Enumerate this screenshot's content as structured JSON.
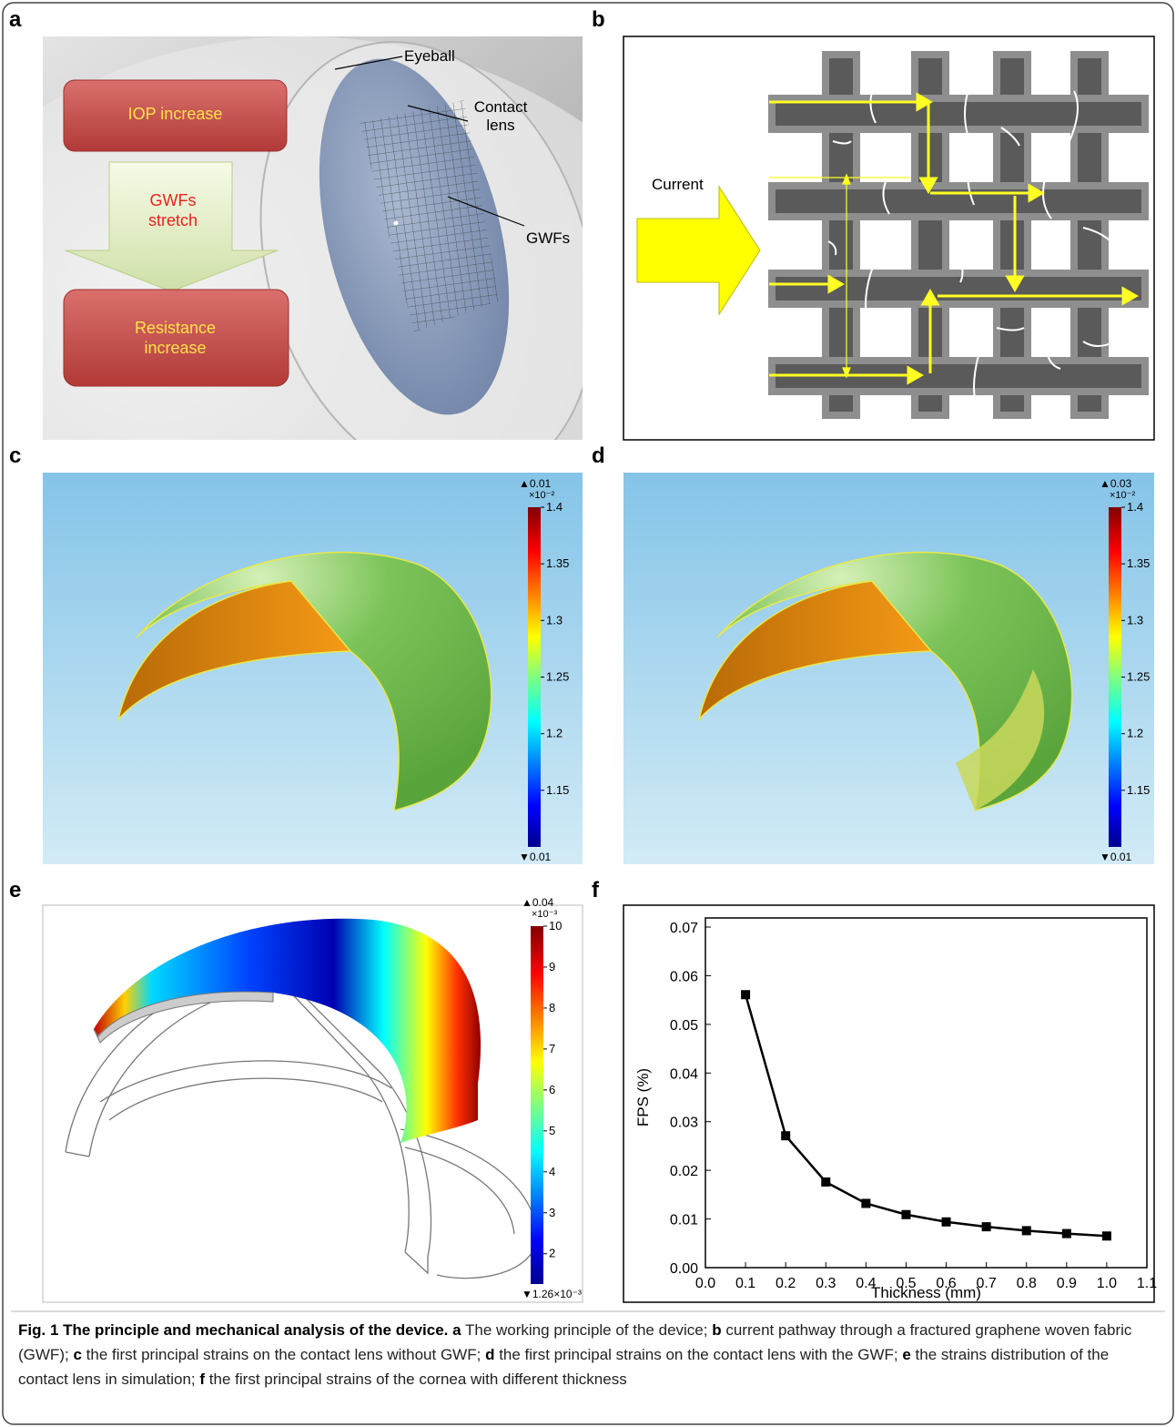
{
  "figure": {
    "panels": {
      "a": {
        "label": "a",
        "boxes": [
          "IOP increase",
          "GWFs stretch",
          "Resistance increase"
        ],
        "callouts": [
          "Eyeball",
          "Contact lens",
          "GWFs"
        ]
      },
      "b": {
        "label": "b",
        "arrow_label": "Current"
      },
      "c": {
        "label": "c",
        "colorbar": {
          "max_label": "▲0.01",
          "multiplier": "×10⁻²",
          "lim": [
            1.1,
            1.4
          ],
          "ticks": [
            1.15,
            1.2,
            1.25,
            1.3,
            1.35,
            1.4
          ],
          "min_label": "▼0.01"
        }
      },
      "d": {
        "label": "d",
        "colorbar": {
          "max_label": "▲0.03",
          "multiplier": "×10⁻²",
          "lim": [
            1.1,
            1.4
          ],
          "ticks": [
            1.15,
            1.2,
            1.25,
            1.3,
            1.35,
            1.4
          ],
          "min_label": "▼0.01"
        }
      },
      "e": {
        "label": "e",
        "colorbar": {
          "max_label": "▲0.04",
          "multiplier": "×10⁻³",
          "lim": [
            1.26,
            10
          ],
          "ticks": [
            2,
            3,
            4,
            5,
            6,
            7,
            8,
            9,
            10
          ],
          "min_label": "▼1.26×10⁻³"
        }
      },
      "f": {
        "label": "f"
      }
    },
    "caption": {
      "title": "Fig. 1 The principle and mechanical analysis of the device.",
      "items": [
        {
          "letter": "a",
          "text": "The working principle of the device;"
        },
        {
          "letter": "b",
          "text": "current pathway through a fractured graphene woven fabric (GWF);"
        },
        {
          "letter": "c",
          "text": "the first principal strains on the contact lens without GWF;"
        },
        {
          "letter": "d",
          "text": "the first principal strains on the contact lens with the GWF;"
        },
        {
          "letter": "e",
          "text": "the strains distribution of the contact lens in simulation;"
        },
        {
          "letter": "f",
          "text": "the first principal strains of the cornea with different thickness"
        }
      ]
    }
  },
  "chart_data": {
    "type": "line",
    "x_label": "Thickness (mm)",
    "y_label": "FPS (%)",
    "x": [
      0.1,
      0.2,
      0.3,
      0.4,
      0.5,
      0.6,
      0.7,
      0.8,
      0.9,
      1.0
    ],
    "values": [
      0.0561,
      0.0271,
      0.0176,
      0.0132,
      0.0109,
      0.0094,
      0.0084,
      0.0076,
      0.007,
      0.0065
    ],
    "color": "#000000",
    "marker": "square",
    "xlim": [
      0,
      1.1
    ],
    "xticks": [
      {
        "value": 0,
        "label": "0.0"
      },
      0.1,
      0.2,
      0.3,
      0.4,
      0.5,
      0.6,
      0.7,
      0.8,
      0.9,
      {
        "value": 1,
        "label": "1.0"
      },
      1.1
    ],
    "ylim": [
      0,
      0.07
    ],
    "yticks": [
      {
        "value": 0,
        "label": "0.00"
      },
      0.01,
      0.02,
      0.03,
      0.04,
      0.05,
      0.06,
      0.07
    ],
    "grid": false
  }
}
